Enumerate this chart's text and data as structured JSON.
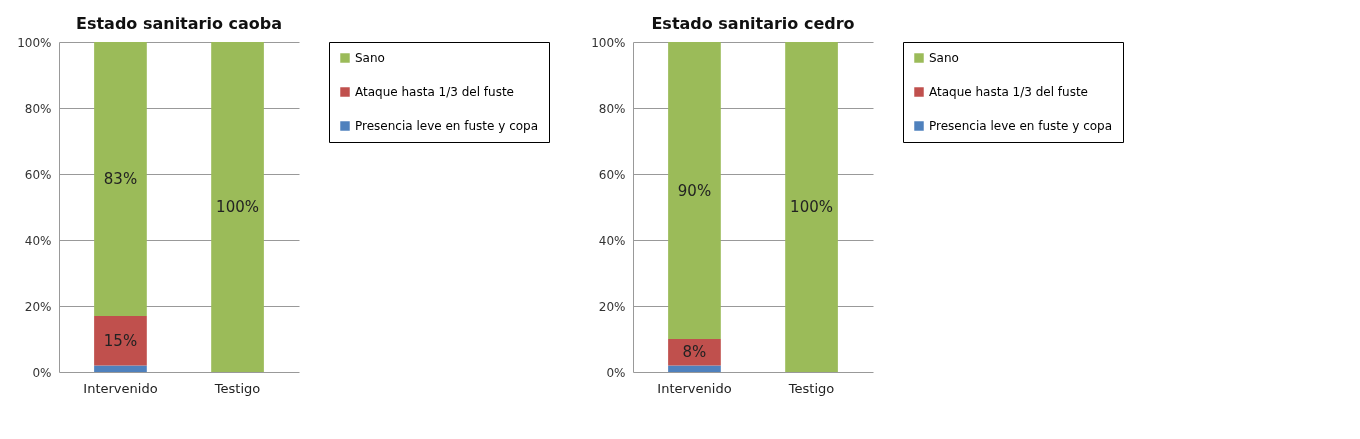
{
  "chart_data": [
    {
      "type": "bar",
      "title": "Estado sanitario caoba",
      "categories": [
        "Intervenido",
        "Testigo"
      ],
      "stacked": true,
      "legend": "right",
      "grid": "y",
      "ylim": [
        0,
        100
      ],
      "yticks": [
        {
          "value": 0,
          "label": "0%"
        },
        {
          "value": 20,
          "label": "20%"
        },
        {
          "value": 40,
          "label": "40%"
        },
        {
          "value": 60,
          "label": "60%"
        },
        {
          "value": 80,
          "label": "80%"
        },
        {
          "value": 100,
          "label": "100%"
        }
      ],
      "series": [
        {
          "name": "Presencia leve en fuste y copa",
          "color": "#4f81bd",
          "values": [
            2,
            0
          ],
          "value_labels": [
            null,
            null
          ]
        },
        {
          "name": "Ataque hasta 1/3 del fuste",
          "color": "#c0504d",
          "values": [
            15,
            0
          ],
          "value_labels": [
            "15%",
            null
          ]
        },
        {
          "name": "Sano",
          "color": "#9bbb59",
          "values": [
            83,
            100
          ],
          "value_labels": [
            "83%",
            "100%"
          ]
        }
      ]
    },
    {
      "type": "bar",
      "title": "Estado sanitario cedro",
      "categories": [
        "Intervenido",
        "Testigo"
      ],
      "stacked": true,
      "legend": "right",
      "grid": "y",
      "ylim": [
        0,
        100
      ],
      "yticks": [
        {
          "value": 0,
          "label": "0%"
        },
        {
          "value": 20,
          "label": "20%"
        },
        {
          "value": 40,
          "label": "40%"
        },
        {
          "value": 60,
          "label": "60%"
        },
        {
          "value": 80,
          "label": "80%"
        },
        {
          "value": 100,
          "label": "100%"
        }
      ],
      "series": [
        {
          "name": "Presencia leve en fuste y copa",
          "color": "#4f81bd",
          "values": [
            2,
            0
          ],
          "value_labels": [
            null,
            null
          ]
        },
        {
          "name": "Ataque hasta 1/3 del fuste",
          "color": "#c0504d",
          "values": [
            8,
            0
          ],
          "value_labels": [
            "8%",
            null
          ]
        },
        {
          "name": "Sano",
          "color": "#9bbb59",
          "values": [
            90,
            100
          ],
          "value_labels": [
            "90%",
            "100%"
          ]
        }
      ]
    }
  ]
}
